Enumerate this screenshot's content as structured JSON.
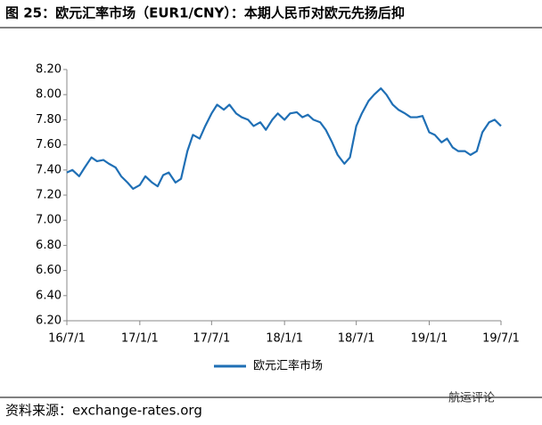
{
  "chart_data": {
    "type": "line",
    "title": "图 25：欧元汇率市场（EUR1/CNY）：本期人民币对欧元先扬后抑",
    "source": "资料来源：exchange-rates.org",
    "watermark": "航运评论",
    "xlim": [
      "2016-07-01",
      "2019-07-01"
    ],
    "xticks": [
      {
        "value": "2016-07-01",
        "label": "16/7/1"
      },
      {
        "value": "2017-01-01",
        "label": "17/1/1"
      },
      {
        "value": "2017-07-01",
        "label": "17/7/1"
      },
      {
        "value": "2018-01-01",
        "label": "18/1/1"
      },
      {
        "value": "2018-07-01",
        "label": "18/7/1"
      },
      {
        "value": "2019-01-01",
        "label": "19/1/1"
      },
      {
        "value": "2019-07-01",
        "label": "19/7/1"
      }
    ],
    "ylim": [
      6.2,
      8.2
    ],
    "yticks": [
      {
        "value": 6.2,
        "label": "6.20"
      },
      {
        "value": 6.4,
        "label": "6.40"
      },
      {
        "value": 6.6,
        "label": "6.60"
      },
      {
        "value": 6.8,
        "label": "6.80"
      },
      {
        "value": 7.0,
        "label": "7.00"
      },
      {
        "value": 7.2,
        "label": "7.20"
      },
      {
        "value": 7.4,
        "label": "7.40"
      },
      {
        "value": 7.6,
        "label": "7.60"
      },
      {
        "value": 7.8,
        "label": "7.80"
      },
      {
        "value": 8.0,
        "label": "8.00"
      },
      {
        "value": 8.2,
        "label": "8.20"
      }
    ],
    "grid": false,
    "legend": "bottom",
    "x": [
      "2016-07-01",
      "2016-07-15",
      "2016-08-01",
      "2016-08-15",
      "2016-09-01",
      "2016-09-15",
      "2016-10-01",
      "2016-10-15",
      "2016-11-01",
      "2016-11-15",
      "2016-12-01",
      "2016-12-15",
      "2017-01-01",
      "2017-01-15",
      "2017-02-01",
      "2017-02-15",
      "2017-03-01",
      "2017-03-15",
      "2017-04-01",
      "2017-04-15",
      "2017-05-01",
      "2017-05-15",
      "2017-06-01",
      "2017-06-15",
      "2017-07-01",
      "2017-07-15",
      "2017-08-01",
      "2017-08-15",
      "2017-09-01",
      "2017-09-15",
      "2017-10-01",
      "2017-10-15",
      "2017-11-01",
      "2017-11-15",
      "2017-12-01",
      "2017-12-15",
      "2018-01-01",
      "2018-01-15",
      "2018-02-01",
      "2018-02-15",
      "2018-03-01",
      "2018-03-15",
      "2018-04-01",
      "2018-04-15",
      "2018-05-01",
      "2018-05-15",
      "2018-06-01",
      "2018-06-15",
      "2018-07-01",
      "2018-07-15",
      "2018-08-01",
      "2018-08-15",
      "2018-09-01",
      "2018-09-15",
      "2018-10-01",
      "2018-10-15",
      "2018-11-01",
      "2018-11-15",
      "2018-12-01",
      "2018-12-15",
      "2019-01-01",
      "2019-01-15",
      "2019-02-01",
      "2019-02-15",
      "2019-03-01",
      "2019-03-15",
      "2019-04-01",
      "2019-04-15",
      "2019-05-01",
      "2019-05-15",
      "2019-06-01",
      "2019-06-15",
      "2019-07-01"
    ],
    "series": [
      {
        "name": "欧元汇率市场",
        "color": "#1f6fb5",
        "values": [
          7.38,
          7.4,
          7.35,
          7.42,
          7.5,
          7.47,
          7.48,
          7.45,
          7.42,
          7.35,
          7.3,
          7.25,
          7.28,
          7.35,
          7.3,
          7.27,
          7.36,
          7.38,
          7.3,
          7.33,
          7.55,
          7.68,
          7.65,
          7.75,
          7.85,
          7.92,
          7.88,
          7.92,
          7.85,
          7.82,
          7.8,
          7.75,
          7.78,
          7.72,
          7.8,
          7.85,
          7.8,
          7.85,
          7.86,
          7.82,
          7.84,
          7.8,
          7.78,
          7.72,
          7.62,
          7.52,
          7.45,
          7.5,
          7.75,
          7.85,
          7.95,
          8.0,
          8.05,
          8.0,
          7.92,
          7.88,
          7.85,
          7.82,
          7.82,
          7.83,
          7.7,
          7.68,
          7.62,
          7.65,
          7.58,
          7.55,
          7.55,
          7.52,
          7.55,
          7.7,
          7.78,
          7.8,
          7.75
        ]
      }
    ]
  }
}
